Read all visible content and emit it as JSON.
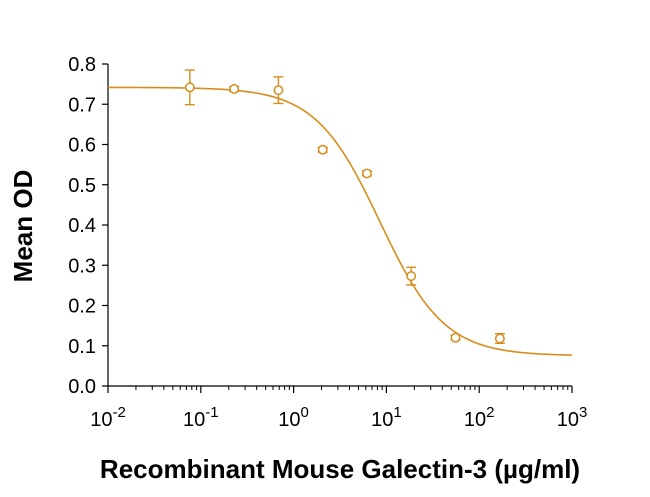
{
  "chart_data": {
    "type": "scatter",
    "title": "",
    "xlabel": "Recombinant Mouse Galectin-3 (µg/ml)",
    "ylabel": "Mean OD",
    "x_scale": "log",
    "xlim": [
      0.01,
      1000
    ],
    "ylim": [
      0,
      0.8
    ],
    "y_ticks": [
      {
        "value": 0.0,
        "label": "0.0"
      },
      {
        "value": 0.1,
        "label": "0.1"
      },
      {
        "value": 0.2,
        "label": "0.2"
      },
      {
        "value": 0.3,
        "label": "0.3"
      },
      {
        "value": 0.4,
        "label": "0.4"
      },
      {
        "value": 0.5,
        "label": "0.5"
      },
      {
        "value": 0.6,
        "label": "0.6"
      },
      {
        "value": 0.7,
        "label": "0.7"
      },
      {
        "value": 0.8,
        "label": "0.8"
      }
    ],
    "x_ticks": [
      {
        "value": 0.01,
        "base": "10",
        "exp": "-2"
      },
      {
        "value": 0.1,
        "base": "10",
        "exp": "-1"
      },
      {
        "value": 1,
        "base": "10",
        "exp": "0"
      },
      {
        "value": 10,
        "base": "10",
        "exp": "1"
      },
      {
        "value": 100,
        "base": "10",
        "exp": "2"
      },
      {
        "value": 1000,
        "base": "10",
        "exp": "3"
      }
    ],
    "series": [
      {
        "points": [
          {
            "x": 0.0762,
            "y": 0.742,
            "err": 0.043
          },
          {
            "x": 0.229,
            "y": 0.738,
            "err": 0.006
          },
          {
            "x": 0.686,
            "y": 0.735,
            "err": 0.033
          },
          {
            "x": 2.06,
            "y": 0.587,
            "err": 0.006
          },
          {
            "x": 6.17,
            "y": 0.528,
            "err": 0.006
          },
          {
            "x": 18.5,
            "y": 0.273,
            "err": 0.022
          },
          {
            "x": 55.6,
            "y": 0.12,
            "err": 0.006
          },
          {
            "x": 167,
            "y": 0.118,
            "err": 0.012
          }
        ],
        "fit": {
          "model": "4PL",
          "top": 0.742,
          "bottom": 0.075,
          "ec50": 8.5,
          "hill": 1.25
        }
      }
    ],
    "color": "#d98c1a",
    "grid": false,
    "legend": "none"
  }
}
